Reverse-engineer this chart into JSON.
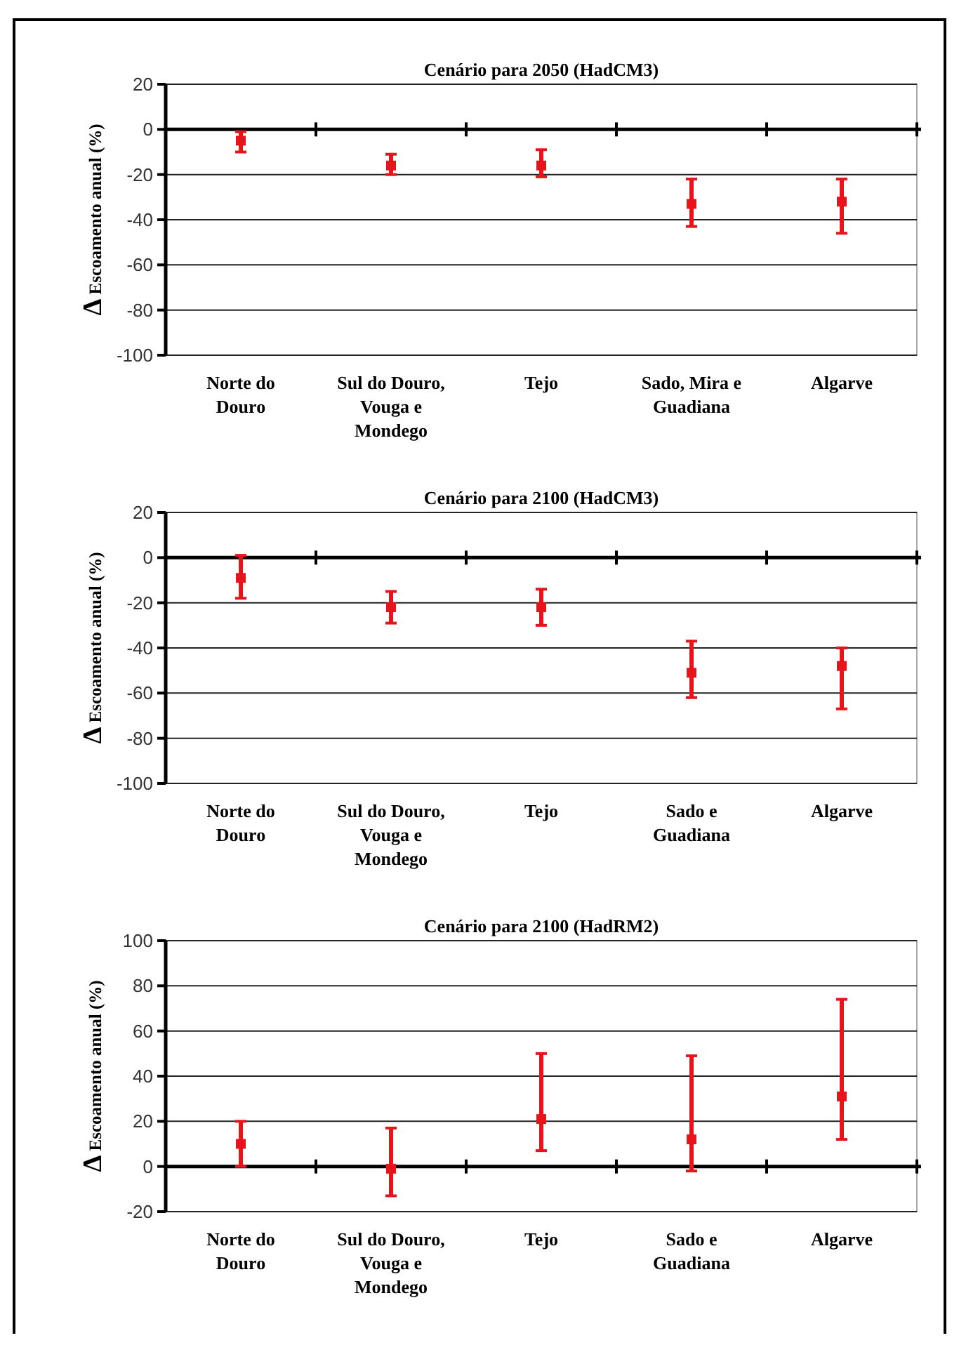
{
  "chart_data": [
    {
      "type": "scatter",
      "title": "Cenário para 2050 (HadCM3)",
      "ylabel": "Δ Escoamento anual (%)",
      "categories": [
        "Norte do Douro",
        "Sul do Douro, Vouga e Mondego",
        "Tejo",
        "Sado, Mira e Guadiana",
        "Algarve"
      ],
      "series": [
        {
          "color": "#e8141b",
          "values": [
            -5,
            -16,
            -16,
            -33,
            -32
          ],
          "errors": [
            [
              -10,
              -1
            ],
            [
              -20,
              -11
            ],
            [
              -21,
              -9
            ],
            [
              -43,
              -22
            ],
            [
              -46,
              -22
            ]
          ]
        }
      ],
      "ylim": [
        -100,
        20
      ],
      "yticks": [
        -100,
        -80,
        -60,
        -40,
        -20,
        0,
        20
      ],
      "grid": "y",
      "marker": "square"
    },
    {
      "type": "scatter",
      "title": "Cenário para 2100 (HadCM3)",
      "ylabel": "Δ Escoamento anual (%)",
      "categories": [
        "Norte do Douro",
        "Sul do Douro, Vouga e Mondego",
        "Tejo",
        "Sado e Guadiana",
        "Algarve"
      ],
      "series": [
        {
          "color": "#e8141b",
          "values": [
            -9,
            -22,
            -22,
            -51,
            -48
          ],
          "errors": [
            [
              -18,
              1
            ],
            [
              -29,
              -15
            ],
            [
              -30,
              -14
            ],
            [
              -62,
              -37
            ],
            [
              -67,
              -40
            ]
          ]
        }
      ],
      "ylim": [
        -100,
        20
      ],
      "yticks": [
        -100,
        -80,
        -60,
        -40,
        -20,
        0,
        20
      ],
      "grid": "y",
      "marker": "square"
    },
    {
      "type": "scatter",
      "title": "Cenário para 2100 (HadRM2)",
      "ylabel": "Δ Escoamento anual (%)",
      "categories": [
        "Norte do Douro",
        "Sul do Douro, Vouga e Mondego",
        "Tejo",
        "Sado e Guadiana",
        "Algarve"
      ],
      "series": [
        {
          "color": "#e8141b",
          "values": [
            10,
            -1,
            21,
            12,
            31
          ],
          "errors": [
            [
              0,
              20
            ],
            [
              -13,
              17
            ],
            [
              7,
              50
            ],
            [
              -2,
              49
            ],
            [
              12,
              74
            ]
          ]
        }
      ],
      "ylim": [
        -20,
        100
      ],
      "yticks": [
        -20,
        0,
        20,
        40,
        60,
        80,
        100
      ],
      "grid": "y",
      "marker": "square"
    }
  ]
}
